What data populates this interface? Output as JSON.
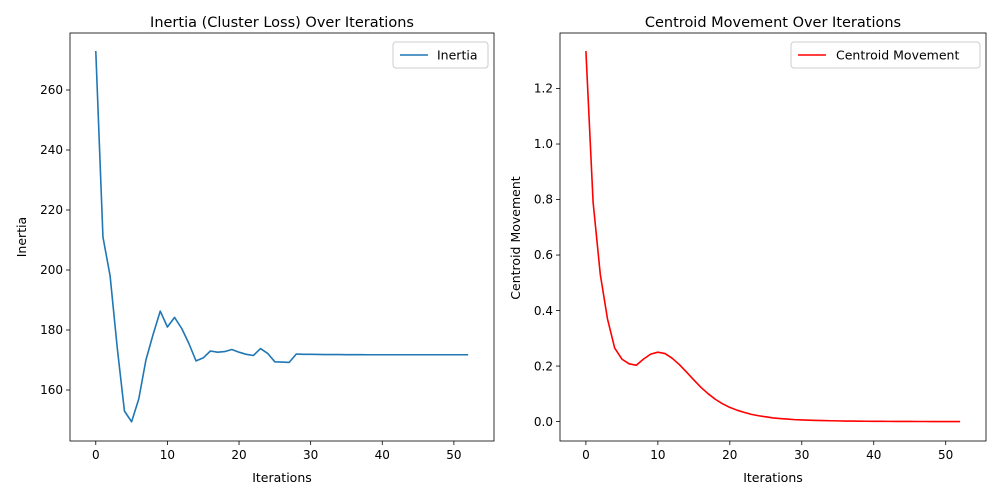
{
  "chart_data": [
    {
      "type": "line",
      "title": "Inertia (Cluster Loss) Over Iterations",
      "xlabel": "Iterations",
      "ylabel": "Inertia",
      "xlim": [
        -3.6,
        55.6
      ],
      "ylim": [
        143,
        279
      ],
      "xticks": [
        0,
        10,
        20,
        30,
        40,
        50
      ],
      "yticks": [
        160,
        180,
        200,
        220,
        240,
        260
      ],
      "grid": false,
      "legend_position": "top-right",
      "series": [
        {
          "name": "Inertia",
          "color": "#1f77b4",
          "x": [
            0,
            1,
            2,
            3,
            4,
            5,
            6,
            7,
            8,
            9,
            10,
            11,
            12,
            13,
            14,
            15,
            16,
            17,
            18,
            19,
            20,
            21,
            22,
            23,
            24,
            25,
            26,
            27,
            28,
            29,
            30,
            31,
            32,
            33,
            34,
            35,
            36,
            37,
            38,
            39,
            40,
            41,
            42,
            43,
            44,
            45,
            46,
            47,
            48,
            49,
            50,
            51,
            52
          ],
          "y": [
            273,
            211,
            198,
            174,
            153,
            149.4,
            157,
            170,
            178.5,
            186.3,
            181,
            184.2,
            180.5,
            175.5,
            169.7,
            170.7,
            173,
            172.6,
            172.8,
            173.5,
            172.6,
            171.9,
            171.5,
            173.8,
            172.2,
            169.4,
            169.3,
            169.2,
            172,
            171.9,
            171.9,
            171.85,
            171.8,
            171.8,
            171.8,
            171.78,
            171.77,
            171.76,
            171.75,
            171.75,
            171.75,
            171.75,
            171.75,
            171.75,
            171.75,
            171.75,
            171.75,
            171.75,
            171.75,
            171.75,
            171.75,
            171.75,
            171.75
          ]
        }
      ]
    },
    {
      "type": "line",
      "title": "Centroid Movement Over Iterations",
      "xlabel": "Iterations",
      "ylabel": "Centroid Movement",
      "xlim": [
        -3.6,
        55.6
      ],
      "ylim": [
        -0.07,
        1.4
      ],
      "xticks": [
        0,
        10,
        20,
        30,
        40,
        50
      ],
      "yticks": [
        0.0,
        0.2,
        0.4,
        0.6,
        0.8,
        1.0,
        1.2
      ],
      "ytick_labels": [
        "0.0",
        "0.2",
        "0.4",
        "0.6",
        "0.8",
        "1.0",
        "1.2"
      ],
      "grid": false,
      "legend_position": "top-right",
      "series": [
        {
          "name": "Centroid Movement",
          "color": "#ff0000",
          "x": [
            0,
            1,
            2,
            3,
            4,
            5,
            6,
            7,
            8,
            9,
            10,
            11,
            12,
            13,
            14,
            15,
            16,
            17,
            18,
            19,
            20,
            21,
            22,
            23,
            24,
            25,
            26,
            27,
            28,
            29,
            30,
            31,
            32,
            33,
            34,
            35,
            36,
            37,
            38,
            39,
            40,
            41,
            42,
            43,
            44,
            45,
            46,
            47,
            48,
            49,
            50,
            51,
            52
          ],
          "y": [
            1.335,
            0.79,
            0.53,
            0.37,
            0.265,
            0.225,
            0.208,
            0.203,
            0.225,
            0.243,
            0.25,
            0.245,
            0.228,
            0.205,
            0.178,
            0.15,
            0.123,
            0.1,
            0.08,
            0.064,
            0.051,
            0.041,
            0.033,
            0.026,
            0.021,
            0.017,
            0.013,
            0.011,
            0.009,
            0.007,
            0.006,
            0.005,
            0.004,
            0.0035,
            0.003,
            0.0025,
            0.002,
            0.0017,
            0.0015,
            0.0012,
            0.001,
            0.0008,
            0.0007,
            0.0006,
            0.0005,
            0.0004,
            0.0003,
            0.0003,
            0.0002,
            0.0002,
            0.0002,
            0.0001,
            0.0001
          ]
        }
      ]
    }
  ]
}
